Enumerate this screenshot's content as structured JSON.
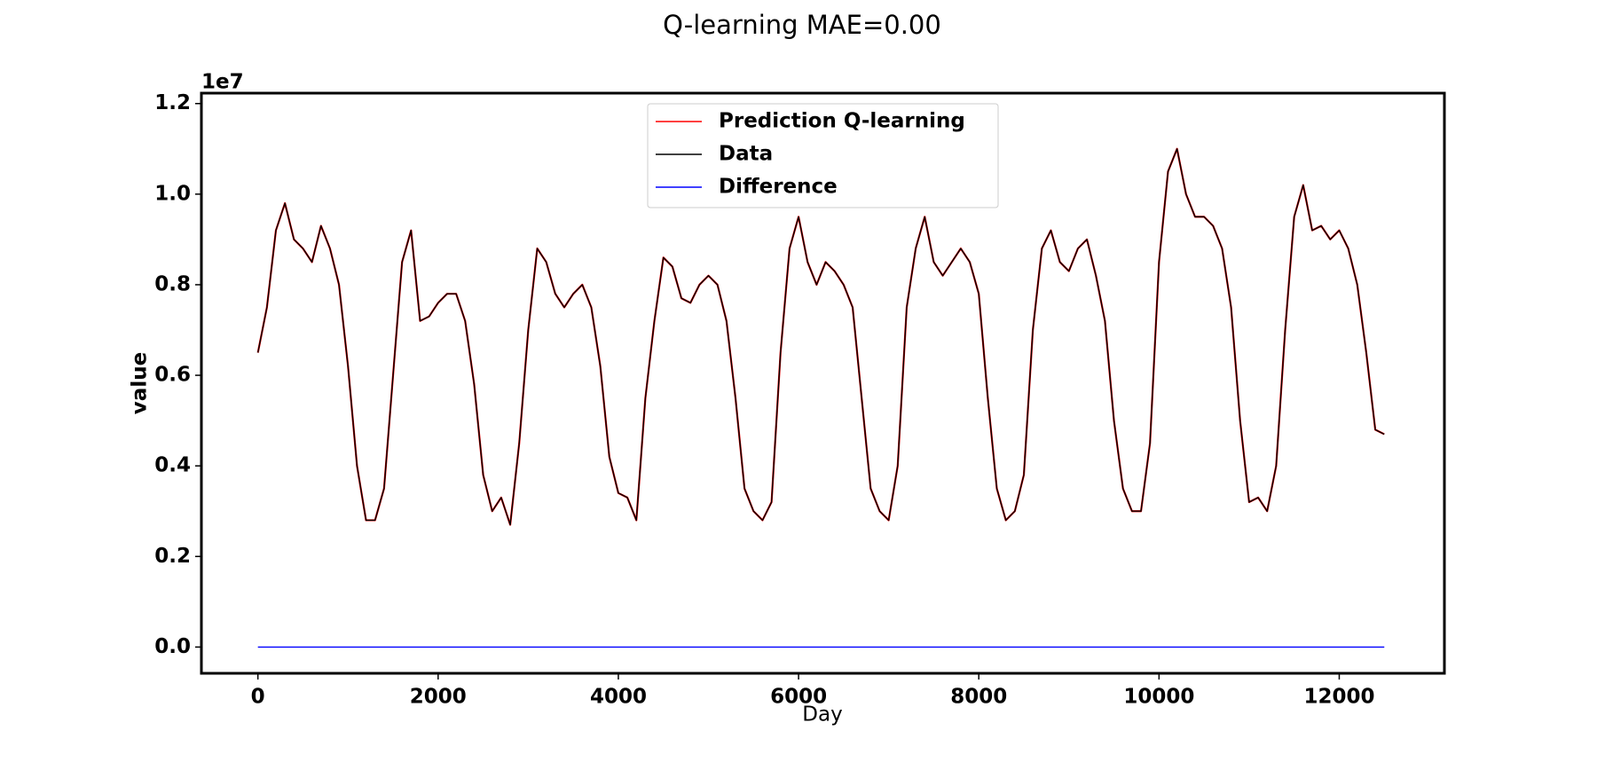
{
  "chart_data": {
    "type": "line",
    "title": "Q-learning MAE=0.00",
    "xlabel": "Day",
    "ylabel": "value",
    "y_offset_label": "1e7",
    "legend": "upper center",
    "grid": false,
    "x": [
      0,
      100,
      200,
      300,
      400,
      500,
      600,
      700,
      800,
      900,
      1000,
      1100,
      1200,
      1300,
      1400,
      1500,
      1600,
      1700,
      1800,
      1900,
      2000,
      2100,
      2200,
      2300,
      2400,
      2500,
      2600,
      2700,
      2800,
      2900,
      3000,
      3100,
      3200,
      3300,
      3400,
      3500,
      3600,
      3700,
      3800,
      3900,
      4000,
      4100,
      4200,
      4300,
      4400,
      4500,
      4600,
      4700,
      4800,
      4900,
      5000,
      5100,
      5200,
      5300,
      5400,
      5500,
      5600,
      5700,
      5800,
      5900,
      6000,
      6100,
      6200,
      6300,
      6400,
      6500,
      6600,
      6700,
      6800,
      6900,
      7000,
      7100,
      7200,
      7300,
      7400,
      7500,
      7600,
      7700,
      7800,
      7900,
      8000,
      8100,
      8200,
      8300,
      8400,
      8500,
      8600,
      8700,
      8800,
      8900,
      9000,
      9100,
      9200,
      9300,
      9400,
      9500,
      9600,
      9700,
      9800,
      9900,
      10000,
      10100,
      10200,
      10300,
      10400,
      10500,
      10600,
      10700,
      10800,
      10900,
      11000,
      11100,
      11200,
      11300,
      11400,
      11500,
      11600,
      11700,
      11800,
      11900,
      12000,
      12100,
      12200,
      12300,
      12400,
      12500
    ],
    "series": [
      {
        "name": "Prediction Q-learning",
        "color": "#ff0000",
        "values": [
          0.65,
          0.75,
          0.92,
          0.98,
          0.9,
          0.88,
          0.85,
          0.93,
          0.88,
          0.8,
          0.62,
          0.4,
          0.28,
          0.28,
          0.35,
          0.6,
          0.85,
          0.92,
          0.72,
          0.73,
          0.76,
          0.78,
          0.78,
          0.72,
          0.58,
          0.38,
          0.3,
          0.33,
          0.27,
          0.45,
          0.7,
          0.88,
          0.85,
          0.78,
          0.75,
          0.78,
          0.8,
          0.75,
          0.62,
          0.42,
          0.34,
          0.33,
          0.28,
          0.55,
          0.72,
          0.86,
          0.84,
          0.77,
          0.76,
          0.8,
          0.82,
          0.8,
          0.72,
          0.55,
          0.35,
          0.3,
          0.28,
          0.32,
          0.65,
          0.88,
          0.95,
          0.85,
          0.8,
          0.85,
          0.83,
          0.8,
          0.75,
          0.55,
          0.35,
          0.3,
          0.28,
          0.4,
          0.75,
          0.88,
          0.95,
          0.85,
          0.82,
          0.85,
          0.88,
          0.85,
          0.78,
          0.55,
          0.35,
          0.28,
          0.3,
          0.38,
          0.7,
          0.88,
          0.92,
          0.85,
          0.83,
          0.88,
          0.9,
          0.82,
          0.72,
          0.5,
          0.35,
          0.3,
          0.3,
          0.45,
          0.85,
          1.05,
          1.1,
          1.0,
          0.95,
          0.95,
          0.93,
          0.88,
          0.75,
          0.5,
          0.32,
          0.33,
          0.3,
          0.4,
          0.7,
          0.95,
          1.02,
          0.92,
          0.93,
          0.9,
          0.92,
          0.88,
          0.8,
          0.65,
          0.48,
          0.47
        ]
      },
      {
        "name": "Data",
        "color": "#000000",
        "values": [
          0.65,
          0.75,
          0.92,
          0.98,
          0.9,
          0.88,
          0.85,
          0.93,
          0.88,
          0.8,
          0.62,
          0.4,
          0.28,
          0.28,
          0.35,
          0.6,
          0.85,
          0.92,
          0.72,
          0.73,
          0.76,
          0.78,
          0.78,
          0.72,
          0.58,
          0.38,
          0.3,
          0.33,
          0.27,
          0.45,
          0.7,
          0.88,
          0.85,
          0.78,
          0.75,
          0.78,
          0.8,
          0.75,
          0.62,
          0.42,
          0.34,
          0.33,
          0.28,
          0.55,
          0.72,
          0.86,
          0.84,
          0.77,
          0.76,
          0.8,
          0.82,
          0.8,
          0.72,
          0.55,
          0.35,
          0.3,
          0.28,
          0.32,
          0.65,
          0.88,
          0.95,
          0.85,
          0.8,
          0.85,
          0.83,
          0.8,
          0.75,
          0.55,
          0.35,
          0.3,
          0.28,
          0.4,
          0.75,
          0.88,
          0.95,
          0.85,
          0.82,
          0.85,
          0.88,
          0.85,
          0.78,
          0.55,
          0.35,
          0.28,
          0.3,
          0.38,
          0.7,
          0.88,
          0.92,
          0.85,
          0.83,
          0.88,
          0.9,
          0.82,
          0.72,
          0.5,
          0.35,
          0.3,
          0.3,
          0.45,
          0.85,
          1.05,
          1.1,
          1.0,
          0.95,
          0.95,
          0.93,
          0.88,
          0.75,
          0.5,
          0.32,
          0.33,
          0.3,
          0.4,
          0.7,
          0.95,
          1.02,
          0.92,
          0.93,
          0.9,
          0.92,
          0.88,
          0.8,
          0.65,
          0.48,
          0.47
        ]
      },
      {
        "name": "Difference",
        "color": "#0000ff",
        "values": [
          0,
          0,
          0,
          0,
          0,
          0,
          0,
          0,
          0,
          0,
          0,
          0,
          0,
          0,
          0,
          0,
          0,
          0,
          0,
          0,
          0,
          0,
          0,
          0,
          0,
          0,
          0,
          0,
          0,
          0,
          0,
          0,
          0,
          0,
          0,
          0,
          0,
          0,
          0,
          0,
          0,
          0,
          0,
          0,
          0,
          0,
          0,
          0,
          0,
          0,
          0,
          0,
          0,
          0,
          0,
          0,
          0,
          0,
          0,
          0,
          0,
          0,
          0,
          0,
          0,
          0,
          0,
          0,
          0,
          0,
          0,
          0,
          0,
          0,
          0,
          0,
          0,
          0,
          0,
          0,
          0,
          0,
          0,
          0,
          0,
          0,
          0,
          0,
          0,
          0,
          0,
          0,
          0,
          0,
          0,
          0,
          0,
          0,
          0,
          0,
          0,
          0,
          0,
          0,
          0,
          0,
          0,
          0,
          0,
          0,
          0,
          0,
          0,
          0,
          0,
          0,
          0,
          0,
          0,
          0,
          0,
          0,
          0,
          0,
          0,
          0
        ]
      }
    ],
    "xlim": [
      -627,
      13167
    ],
    "ylim": [
      -0.058,
      1.223
    ],
    "xticks": [
      0,
      2000,
      4000,
      6000,
      8000,
      10000,
      12000
    ],
    "yticks": [
      {
        "value": 0,
        "label": "0.0"
      },
      0.2,
      0.4,
      0.6,
      0.8,
      {
        "value": 1,
        "label": "1.0"
      },
      1.2
    ]
  }
}
